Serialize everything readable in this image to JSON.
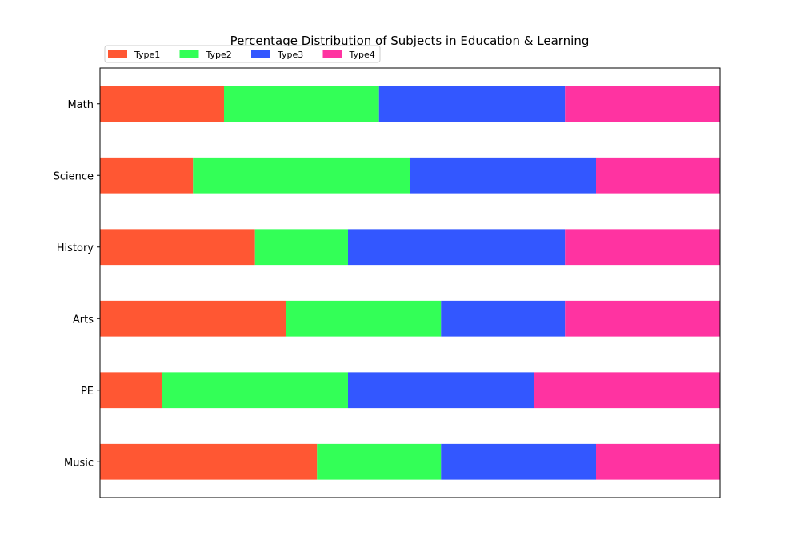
{
  "chart_data": {
    "type": "bar",
    "orientation": "horizontal",
    "stacked": true,
    "title": "Percentage Distribution of Subjects in Education & Learning",
    "xlabel": "",
    "ylabel": "",
    "categories": [
      "Math",
      "Science",
      "History",
      "Arts",
      "PE",
      "Music"
    ],
    "series": [
      {
        "name": "Type1",
        "color": "#FF5733",
        "values": [
          20,
          15,
          25,
          30,
          10,
          35
        ]
      },
      {
        "name": "Type2",
        "color": "#33FF57",
        "values": [
          25,
          35,
          15,
          25,
          30,
          20
        ]
      },
      {
        "name": "Type3",
        "color": "#3357FF",
        "values": [
          30,
          30,
          35,
          20,
          30,
          25
        ]
      },
      {
        "name": "Type4",
        "color": "#FF33A1",
        "values": [
          25,
          20,
          25,
          25,
          30,
          20
        ]
      }
    ],
    "xlim": [
      0,
      100
    ],
    "x_ticks_visible": false,
    "grid": false,
    "legend": {
      "placement": "top-left",
      "columns": 4
    }
  }
}
